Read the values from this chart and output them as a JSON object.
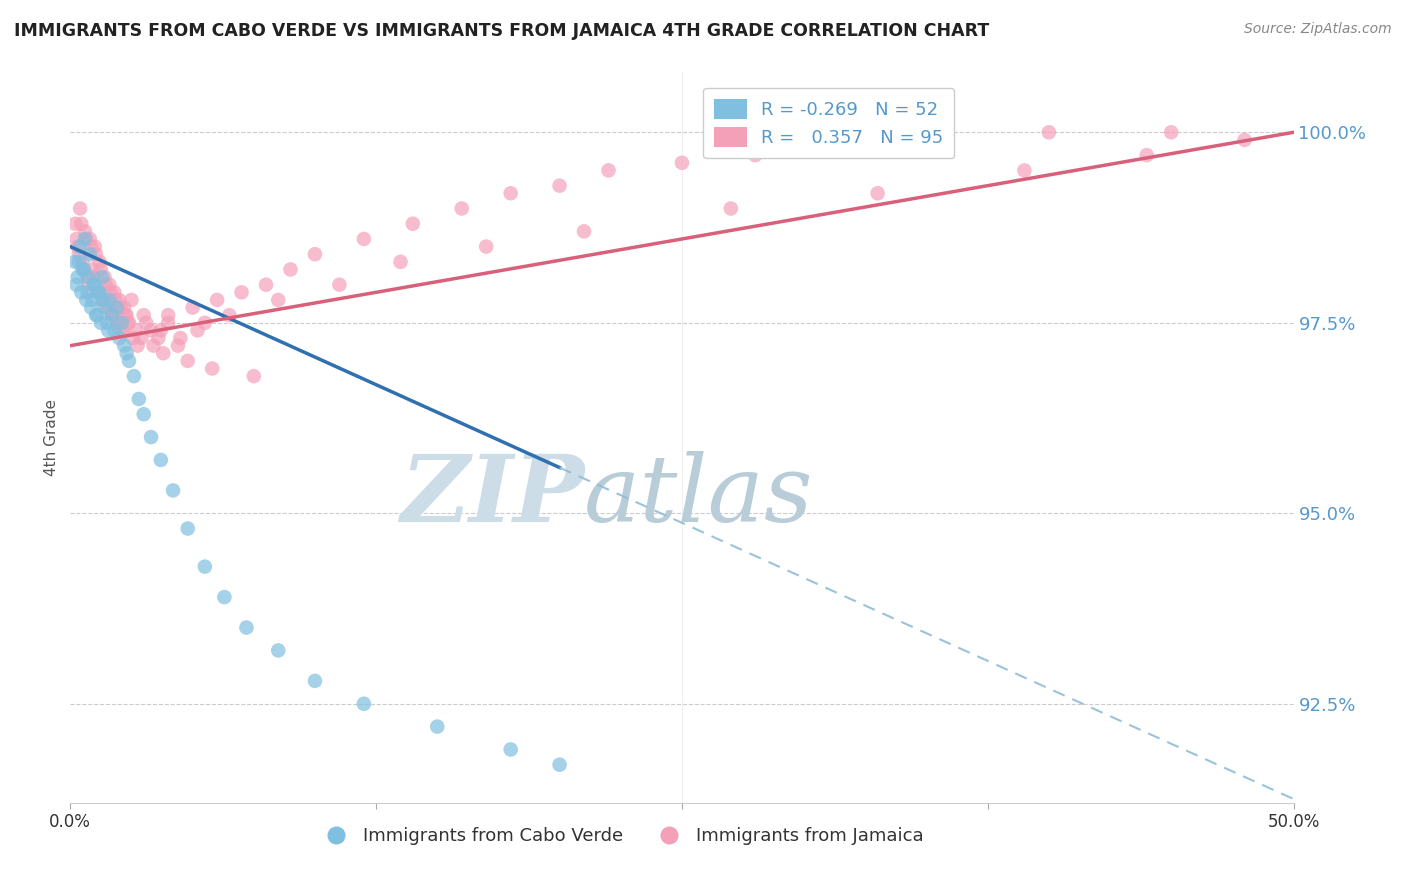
{
  "title": "IMMIGRANTS FROM CABO VERDE VS IMMIGRANTS FROM JAMAICA 4TH GRADE CORRELATION CHART",
  "source": "Source: ZipAtlas.com",
  "ylabel": "4th Grade",
  "y_ticks": [
    92.5,
    95.0,
    97.5,
    100.0
  ],
  "y_tick_labels": [
    "92.5%",
    "95.0%",
    "97.5%",
    "100.0%"
  ],
  "x_min": 0.0,
  "x_max": 50.0,
  "y_min": 91.2,
  "y_max": 100.8,
  "legend_blue_R": "-0.269",
  "legend_blue_N": "52",
  "legend_pink_R": "0.357",
  "legend_pink_N": "95",
  "blue_color": "#7fbfdf",
  "pink_color": "#f4a0b8",
  "line_blue_solid_color": "#3070b0",
  "line_blue_dash_color": "#90bcd8",
  "line_pink_color": "#d9607a",
  "watermark_ZIP": "ZIP",
  "watermark_atlas": "atlas",
  "watermark_color_ZIP": "#c5d8ea",
  "watermark_color_atlas": "#b0c8d8",
  "blue_x": [
    0.2,
    0.3,
    0.4,
    0.5,
    0.6,
    0.7,
    0.8,
    0.9,
    1.0,
    1.1,
    1.2,
    1.3,
    1.4,
    1.5,
    1.6,
    1.7,
    1.8,
    1.9,
    2.0,
    2.1,
    2.2,
    2.4,
    2.6,
    2.8,
    3.0,
    3.3,
    3.7,
    4.2,
    4.8,
    5.5,
    6.3,
    7.2,
    8.5,
    10.0,
    12.0,
    15.0,
    18.0,
    20.0,
    0.25,
    0.35,
    0.45,
    0.55,
    0.65,
    0.75,
    0.85,
    0.95,
    1.05,
    1.15,
    1.25,
    1.35,
    1.55,
    2.3
  ],
  "blue_y": [
    98.3,
    98.1,
    98.5,
    98.2,
    98.6,
    97.9,
    98.4,
    97.8,
    98.0,
    97.6,
    97.9,
    98.1,
    97.7,
    97.5,
    97.8,
    97.6,
    97.4,
    97.7,
    97.3,
    97.5,
    97.2,
    97.0,
    96.8,
    96.5,
    96.3,
    96.0,
    95.7,
    95.3,
    94.8,
    94.3,
    93.9,
    93.5,
    93.2,
    92.8,
    92.5,
    92.2,
    91.9,
    91.7,
    98.0,
    98.3,
    97.9,
    98.2,
    97.8,
    98.1,
    97.7,
    98.0,
    97.6,
    97.9,
    97.5,
    97.8,
    97.4,
    97.1
  ],
  "pink_x": [
    0.2,
    0.3,
    0.4,
    0.5,
    0.6,
    0.7,
    0.8,
    0.9,
    1.0,
    1.1,
    1.2,
    1.3,
    1.4,
    1.5,
    1.6,
    1.7,
    1.8,
    1.9,
    2.0,
    2.1,
    2.2,
    2.3,
    2.4,
    2.5,
    2.7,
    2.9,
    3.1,
    3.4,
    3.7,
    4.0,
    4.5,
    5.0,
    5.5,
    6.0,
    7.0,
    8.0,
    9.0,
    10.0,
    12.0,
    14.0,
    16.0,
    18.0,
    20.0,
    22.0,
    25.0,
    28.0,
    30.0,
    35.0,
    40.0,
    45.0,
    0.25,
    0.35,
    0.45,
    0.55,
    0.65,
    0.75,
    0.85,
    0.95,
    1.05,
    1.15,
    1.25,
    1.35,
    1.45,
    1.55,
    1.65,
    1.75,
    1.85,
    1.95,
    2.05,
    2.15,
    2.25,
    2.35,
    2.55,
    2.75,
    3.0,
    3.3,
    3.6,
    4.0,
    4.4,
    5.2,
    6.5,
    8.5,
    11.0,
    13.5,
    17.0,
    21.0,
    27.0,
    33.0,
    39.0,
    44.0,
    48.0,
    3.8,
    4.8,
    5.8,
    7.5
  ],
  "pink_y": [
    98.8,
    98.5,
    99.0,
    98.3,
    98.7,
    98.1,
    98.6,
    98.2,
    98.5,
    97.9,
    98.3,
    97.8,
    98.1,
    97.7,
    98.0,
    97.6,
    97.9,
    97.5,
    97.8,
    97.4,
    97.7,
    97.6,
    97.5,
    97.8,
    97.4,
    97.3,
    97.5,
    97.2,
    97.4,
    97.6,
    97.3,
    97.7,
    97.5,
    97.8,
    97.9,
    98.0,
    98.2,
    98.4,
    98.6,
    98.8,
    99.0,
    99.2,
    99.3,
    99.5,
    99.6,
    99.7,
    99.8,
    99.9,
    100.0,
    100.0,
    98.6,
    98.4,
    98.8,
    98.2,
    98.6,
    98.0,
    98.5,
    98.1,
    98.4,
    97.9,
    98.2,
    97.8,
    98.0,
    97.7,
    97.9,
    97.6,
    97.8,
    97.5,
    97.7,
    97.4,
    97.6,
    97.5,
    97.3,
    97.2,
    97.6,
    97.4,
    97.3,
    97.5,
    97.2,
    97.4,
    97.6,
    97.8,
    98.0,
    98.3,
    98.5,
    98.7,
    99.0,
    99.2,
    99.5,
    99.7,
    99.9,
    97.1,
    97.0,
    96.9,
    96.8
  ]
}
